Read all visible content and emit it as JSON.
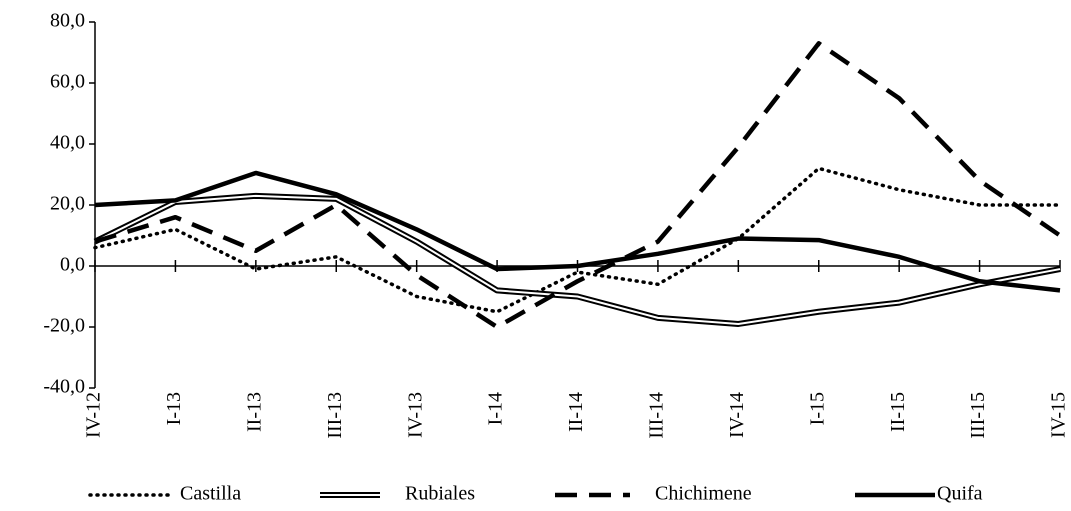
{
  "chart_data": {
    "type": "line",
    "categories": [
      "IV-12",
      "I-13",
      "II-13",
      "III-13",
      "IV-13",
      "I-14",
      "II-14",
      "III-14",
      "IV-14",
      "I-15",
      "II-15",
      "III-15",
      "IV-15"
    ],
    "series": [
      {
        "name": "Castilla",
        "color": "#000000",
        "style": "dotted",
        "values": [
          6,
          12,
          -1,
          3,
          -10,
          -15,
          -2,
          -6,
          9,
          32,
          25,
          20,
          20
        ]
      },
      {
        "name": "Rubiales",
        "color": "#000000",
        "style": "double",
        "values": [
          8,
          21,
          23,
          22,
          8,
          -8,
          -10,
          -17,
          -19,
          -15,
          -12,
          -6,
          -1
        ]
      },
      {
        "name": "Chichimene",
        "color": "#000000",
        "style": "dashed",
        "values": [
          8,
          16,
          5,
          20,
          -3,
          -20,
          -5,
          8,
          39,
          73,
          55,
          28,
          10
        ]
      },
      {
        "name": "Quifa",
        "color": "#000000",
        "style": "solid",
        "values": [
          20,
          21.5,
          30.5,
          23.5,
          12,
          -1,
          0,
          4,
          9,
          8.5,
          3,
          -5,
          -8
        ]
      }
    ],
    "ylim": [
      -40,
      80
    ],
    "yticks": [
      {
        "value": -40,
        "label": "-40,0"
      },
      {
        "value": -20,
        "label": "-20,0"
      },
      {
        "value": 0,
        "label": "0,0"
      },
      {
        "value": 20,
        "label": "20,0"
      },
      {
        "value": 40,
        "label": "40,0"
      },
      {
        "value": 60,
        "label": "60,0"
      },
      {
        "value": 80,
        "label": "80,0"
      }
    ],
    "legend": "bottom"
  }
}
